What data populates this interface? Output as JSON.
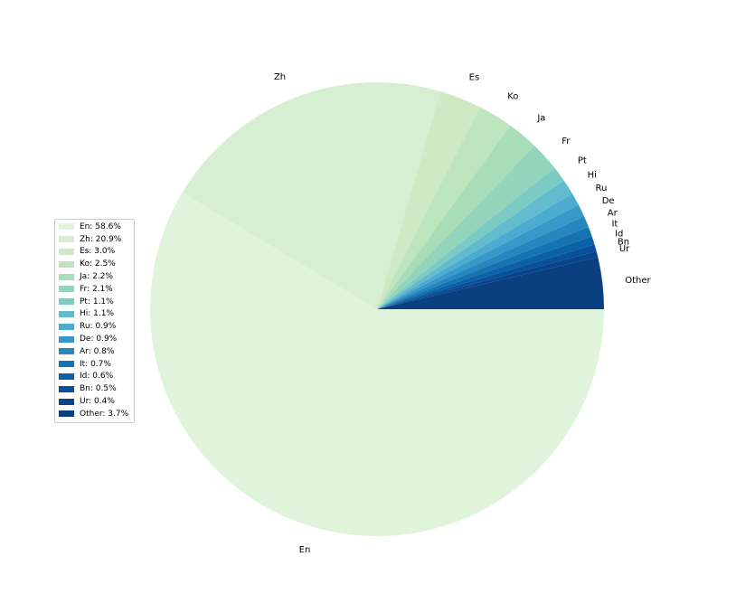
{
  "chart_data": {
    "type": "pie",
    "slices": [
      {
        "label": "En",
        "value": 58.6,
        "color": "#e0f3db",
        "legend": "En: 58.6%"
      },
      {
        "label": "Zh",
        "value": 20.9,
        "color": "#d6efd0",
        "legend": "Zh: 20.9%"
      },
      {
        "label": "Es",
        "value": 3.0,
        "color": "#cdeac5",
        "legend": "Es: 3.0%"
      },
      {
        "label": "Ko",
        "value": 2.5,
        "color": "#bde5be",
        "legend": "Ko: 2.5%"
      },
      {
        "label": "Ja",
        "value": 2.2,
        "color": "#a9ddb7",
        "legend": "Ja: 2.2%"
      },
      {
        "label": "Fr",
        "value": 2.1,
        "color": "#93d4bd",
        "legend": "Fr: 2.1%"
      },
      {
        "label": "Pt",
        "value": 1.1,
        "color": "#7bcbc4",
        "legend": "Pt: 1.1%"
      },
      {
        "label": "Hi",
        "value": 1.1,
        "color": "#62bccd",
        "legend": "Hi: 1.1%"
      },
      {
        "label": "Ru",
        "value": 0.9,
        "color": "#4cabd1",
        "legend": "Ru: 0.9%"
      },
      {
        "label": "De",
        "value": 0.9,
        "color": "#3799c7",
        "legend": "De: 0.9%"
      },
      {
        "label": "Ar",
        "value": 0.8,
        "color": "#2686bd",
        "legend": "Ar: 0.8%"
      },
      {
        "label": "It",
        "value": 0.7,
        "color": "#1673b1",
        "legend": "It: 0.7%"
      },
      {
        "label": "Id",
        "value": 0.6,
        "color": "#0a61a4",
        "legend": "Id: 0.6%"
      },
      {
        "label": "Bn",
        "value": 0.5,
        "color": "#08519a",
        "legend": "Bn: 0.5%"
      },
      {
        "label": "Ur",
        "value": 0.4,
        "color": "#084488",
        "legend": "Ur: 0.4%"
      },
      {
        "label": "Other",
        "value": 3.7,
        "color": "#0a3f80",
        "legend": "Other: 3.7%"
      }
    ],
    "start_angle_deg": 0,
    "direction": "clockwise",
    "legend_position": "center-left",
    "title": ""
  }
}
